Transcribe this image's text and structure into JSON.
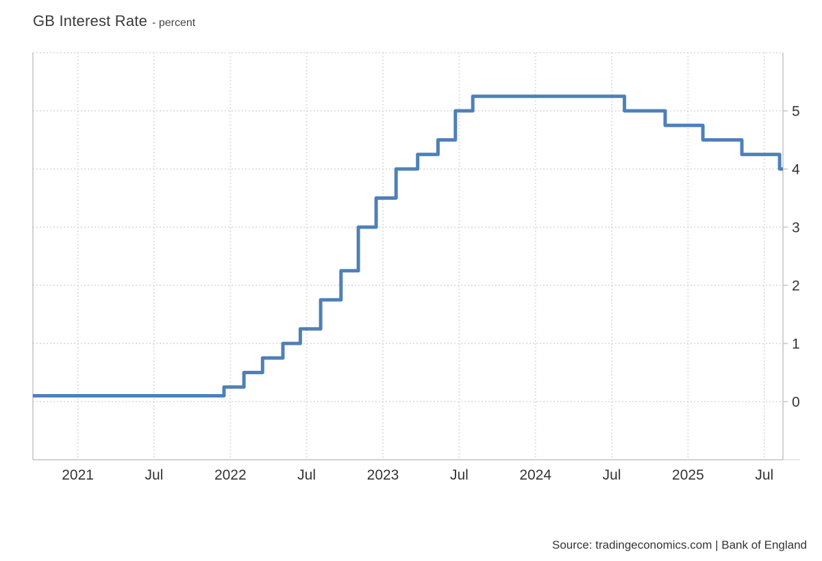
{
  "chart_data": {
    "type": "line",
    "step": "after",
    "title": "GB Interest Rate",
    "subtitle": "- percent",
    "xlabel": "",
    "ylabel": "percent",
    "legend": "none",
    "grid": "dotted",
    "x_range": [
      "2020-09-15",
      "2025-08-15"
    ],
    "ylim": [
      -1,
      6
    ],
    "y_axis": {
      "side": "right",
      "gridline_values": [
        0,
        1,
        2,
        3,
        4,
        5,
        6
      ],
      "ticks": [
        {
          "value": 0,
          "label": "0"
        },
        {
          "value": 1,
          "label": "1"
        },
        {
          "value": 2,
          "label": "2"
        },
        {
          "value": 3,
          "label": "3"
        },
        {
          "value": 4,
          "label": "4"
        },
        {
          "value": 5,
          "label": "5"
        }
      ]
    },
    "x_axis": {
      "ticks": [
        {
          "date": "2021-01-01",
          "label": "2021"
        },
        {
          "date": "2021-07-01",
          "label": "Jul"
        },
        {
          "date": "2022-01-01",
          "label": "2022"
        },
        {
          "date": "2022-07-01",
          "label": "Jul"
        },
        {
          "date": "2023-01-01",
          "label": "2023"
        },
        {
          "date": "2023-07-01",
          "label": "Jul"
        },
        {
          "date": "2024-01-01",
          "label": "2024"
        },
        {
          "date": "2024-07-01",
          "label": "Jul"
        },
        {
          "date": "2025-01-01",
          "label": "2025"
        },
        {
          "date": "2025-07-01",
          "label": "Jul"
        }
      ]
    },
    "series": [
      {
        "name": "GB Interest Rate",
        "color": "#4e80b8",
        "stroke_width": 5,
        "points": [
          {
            "date": "2020-09-15",
            "value": 0.1
          },
          {
            "date": "2021-12-16",
            "value": 0.25
          },
          {
            "date": "2022-02-03",
            "value": 0.5
          },
          {
            "date": "2022-03-17",
            "value": 0.75
          },
          {
            "date": "2022-05-05",
            "value": 1.0
          },
          {
            "date": "2022-06-16",
            "value": 1.25
          },
          {
            "date": "2022-08-04",
            "value": 1.75
          },
          {
            "date": "2022-09-22",
            "value": 2.25
          },
          {
            "date": "2022-11-03",
            "value": 3.0
          },
          {
            "date": "2022-12-15",
            "value": 3.5
          },
          {
            "date": "2023-02-02",
            "value": 4.0
          },
          {
            "date": "2023-03-23",
            "value": 4.25
          },
          {
            "date": "2023-05-11",
            "value": 4.5
          },
          {
            "date": "2023-06-22",
            "value": 5.0
          },
          {
            "date": "2023-08-03",
            "value": 5.25
          },
          {
            "date": "2024-08-01",
            "value": 5.0
          },
          {
            "date": "2024-11-07",
            "value": 4.75
          },
          {
            "date": "2025-02-06",
            "value": 4.5
          },
          {
            "date": "2025-05-08",
            "value": 4.25
          },
          {
            "date": "2025-08-07",
            "value": 4.0
          }
        ]
      }
    ]
  },
  "source": {
    "text": "Source: tradingeconomics.com | Bank of England"
  },
  "colors": {
    "line": "#4e80b8",
    "grid": "#e0e0e0",
    "axis": "#c4c4c4",
    "axis_extension": "#e2e2e2",
    "tick_text": "#333333",
    "title_text": "#3a3a3a",
    "background": "#ffffff"
  }
}
